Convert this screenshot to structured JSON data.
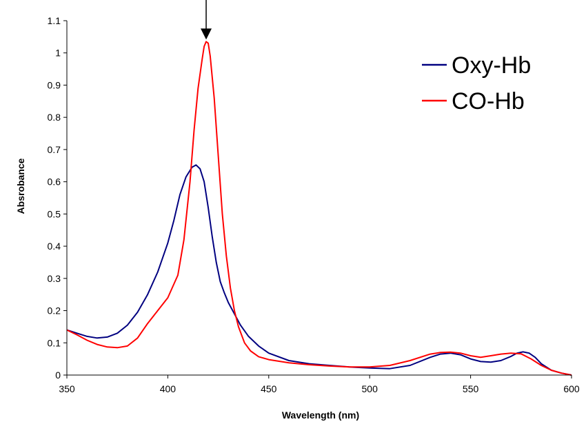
{
  "chart_data": {
    "type": "line",
    "title": "",
    "xlabel": "Wavelength (nm)",
    "ylabel": "Absrobance",
    "xlim": [
      350,
      600
    ],
    "ylim": [
      0,
      1.1
    ],
    "x_ticks": [
      "350",
      "400",
      "450",
      "500",
      "550",
      "600"
    ],
    "y_ticks": [
      "0",
      "0.1",
      "0.2",
      "0.3",
      "0.4",
      "0.5",
      "0.6",
      "0.7",
      "0.8",
      "0.9",
      "1",
      "1.1"
    ],
    "grid": false,
    "legend_position": "top-right",
    "annotation": {
      "type": "arrow",
      "points_to_x": 419,
      "points_to_y": 1.035
    },
    "series": [
      {
        "name": "Oxy-Hb",
        "color": "#000080",
        "x": [
          350,
          355,
          360,
          365,
          370,
          375,
          380,
          385,
          390,
          395,
          400,
          403,
          406,
          409,
          412,
          414,
          416,
          418,
          420,
          422,
          424,
          426,
          428,
          430,
          433,
          436,
          440,
          445,
          450,
          460,
          470,
          480,
          490,
          500,
          510,
          520,
          530,
          535,
          540,
          545,
          550,
          555,
          560,
          565,
          570,
          573,
          576,
          579,
          582,
          585,
          590,
          595,
          600
        ],
        "y": [
          0.14,
          0.13,
          0.12,
          0.115,
          0.118,
          0.13,
          0.155,
          0.195,
          0.25,
          0.32,
          0.41,
          0.48,
          0.56,
          0.615,
          0.645,
          0.652,
          0.64,
          0.6,
          0.52,
          0.43,
          0.35,
          0.29,
          0.255,
          0.225,
          0.19,
          0.155,
          0.12,
          0.09,
          0.068,
          0.045,
          0.035,
          0.03,
          0.025,
          0.022,
          0.02,
          0.03,
          0.055,
          0.065,
          0.068,
          0.063,
          0.05,
          0.042,
          0.04,
          0.045,
          0.058,
          0.068,
          0.072,
          0.068,
          0.055,
          0.035,
          0.015,
          0.006,
          0.0
        ]
      },
      {
        "name": "CO-Hb",
        "color": "#ff0000",
        "x": [
          350,
          355,
          360,
          365,
          370,
          375,
          380,
          385,
          390,
          395,
          400,
          405,
          408,
          411,
          413,
          415,
          417,
          418,
          419,
          420,
          421,
          423,
          425,
          427,
          429,
          431,
          433,
          435,
          438,
          441,
          445,
          450,
          460,
          470,
          480,
          490,
          500,
          510,
          520,
          530,
          535,
          540,
          545,
          550,
          555,
          560,
          565,
          570,
          575,
          580,
          585,
          590,
          595,
          600
        ],
        "y": [
          0.14,
          0.125,
          0.108,
          0.095,
          0.087,
          0.085,
          0.09,
          0.115,
          0.16,
          0.2,
          0.24,
          0.31,
          0.42,
          0.6,
          0.76,
          0.89,
          0.98,
          1.02,
          1.035,
          1.03,
          0.99,
          0.86,
          0.68,
          0.5,
          0.37,
          0.27,
          0.2,
          0.15,
          0.1,
          0.075,
          0.057,
          0.048,
          0.038,
          0.032,
          0.028,
          0.025,
          0.025,
          0.03,
          0.045,
          0.065,
          0.07,
          0.071,
          0.068,
          0.06,
          0.055,
          0.06,
          0.065,
          0.068,
          0.066,
          0.05,
          0.03,
          0.015,
          0.006,
          0.0
        ]
      }
    ]
  }
}
